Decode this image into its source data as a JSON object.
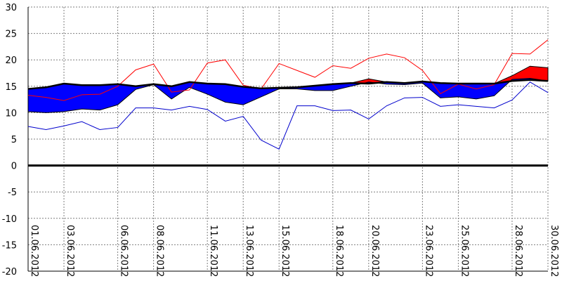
{
  "chart_data": {
    "type": "line",
    "title": "",
    "xlabel": "",
    "ylabel": "",
    "ylim": [
      -20,
      30
    ],
    "y_ticks": [
      30,
      25,
      20,
      15,
      10,
      5,
      0,
      -5,
      -10,
      -15,
      -20
    ],
    "grid": true,
    "x_tick_labels": [
      "01.06.2012",
      "03.06.2012",
      "06.06.2012",
      "08.06.2012",
      "11.06.2012",
      "13.06.2012",
      "15.06.2012",
      "18.06.2012",
      "20.06.2012",
      "23.06.2012",
      "25.06.2012",
      "28.06.2012",
      "30.06.2012"
    ],
    "x_tick_days": [
      1,
      3,
      6,
      8,
      11,
      13,
      15,
      18,
      20,
      23,
      25,
      28,
      30
    ],
    "days": [
      1,
      2,
      3,
      4,
      5,
      6,
      7,
      8,
      9,
      10,
      11,
      12,
      13,
      14,
      15,
      16,
      17,
      18,
      19,
      20,
      21,
      22,
      23,
      24,
      25,
      26,
      27,
      28,
      29,
      30
    ],
    "series": [
      {
        "values": [
          14.5,
          14.8,
          15.5,
          15.2,
          15.2,
          15.4,
          15.0,
          15.4,
          15.0,
          15.8,
          15.5,
          15.4,
          14.9,
          14.6,
          14.7,
          14.8,
          15.1,
          15.4,
          15.6,
          15.5,
          15.8,
          15.6,
          15.9,
          15.6,
          15.5,
          15.5,
          15.5,
          16.0,
          16.2,
          16.0
        ]
      },
      {
        "values": [
          10.2,
          10.0,
          10.2,
          10.7,
          10.5,
          11.5,
          14.4,
          15.3,
          12.6,
          14.8,
          13.5,
          12.0,
          11.5,
          13.0,
          14.5,
          14.5,
          14.2,
          14.2,
          15.0,
          15.8,
          15.4,
          15.3,
          15.6,
          12.8,
          13.0,
          12.6,
          13.2,
          16.3,
          16.5,
          16.0
        ]
      },
      {
        "values": [
          13.3,
          12.9,
          12.3,
          13.4,
          13.5,
          15.0,
          18.1,
          19.2,
          13.9,
          14.3,
          19.4,
          20.0,
          15.2,
          14.5,
          19.3,
          18.0,
          16.7,
          18.9,
          18.4,
          20.3,
          21.1,
          20.4,
          18.0,
          13.6,
          15.4,
          14.5,
          15.3,
          21.2,
          21.1,
          23.8
        ]
      },
      {
        "values": [
          7.4,
          6.8,
          7.5,
          8.3,
          6.8,
          7.2,
          10.9,
          10.9,
          10.5,
          11.2,
          10.6,
          8.4,
          9.3,
          4.8,
          3.1,
          11.3,
          11.3,
          10.4,
          10.5,
          8.8,
          11.3,
          12.8,
          12.9,
          11.2,
          11.5,
          11.2,
          10.9,
          12.4,
          15.8,
          13.8
        ]
      },
      {
        "values": [
          14.5,
          14.8,
          15.5,
          15.2,
          15.2,
          15.4,
          15.0,
          15.4,
          15.0,
          15.8,
          15.5,
          15.4,
          14.9,
          14.6,
          14.7,
          14.8,
          15.1,
          15.4,
          15.6,
          16.4,
          15.8,
          15.6,
          15.9,
          15.6,
          15.5,
          15.5,
          15.5,
          17.0,
          18.8,
          18.5
        ]
      },
      {
        "values": [
          13.2,
          13.0,
          15.0,
          15.2,
          15.1,
          15.3,
          14.9,
          15.2,
          14.8,
          15.5,
          15.2,
          15.0,
          14.4,
          14.3,
          14.5,
          14.7,
          15.0,
          15.2,
          15.5,
          15.4,
          15.6,
          15.4,
          15.8,
          15.3,
          15.2,
          15.2,
          15.3,
          15.9,
          16.0,
          15.6
        ]
      }
    ],
    "colors": {
      "below_fill": "#0000ff",
      "above_fill": "#ff0000",
      "mean_line": "#000000",
      "max_line": "#ff0000",
      "min_line": "#0000cc",
      "zero_line": "#000000",
      "grid": "#7f7f7f",
      "border": "#000000"
    }
  }
}
